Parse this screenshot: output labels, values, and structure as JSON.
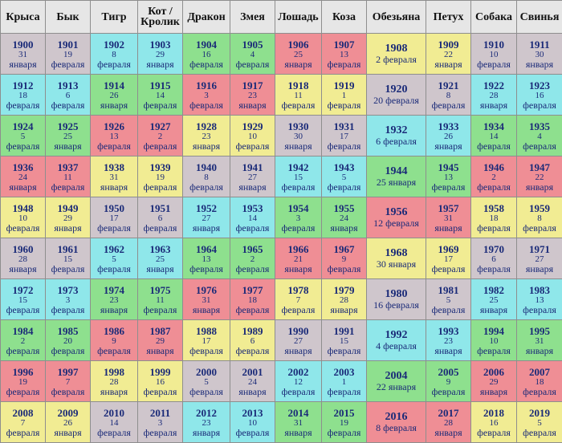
{
  "colors": {
    "header": "#e6e6e6",
    "gray": "#cfc6cc",
    "cyan": "#8fe7ea",
    "green": "#8ee08e",
    "red": "#ef8e95",
    "yellow": "#f1ec93",
    "text": "#1a2a78"
  },
  "headers": [
    "Крыса",
    "Бык",
    "Тигр",
    "Кот / Кролик",
    "Дракон",
    "Змея",
    "Лошадь",
    "Коза",
    "Обезьяна",
    "Петух",
    "Собака",
    "Свинья"
  ],
  "rows": [
    [
      {
        "year": "1900",
        "day": "31",
        "month": "января",
        "color": "gray"
      },
      {
        "year": "1901",
        "day": "19",
        "month": "февраля",
        "color": "gray"
      },
      {
        "year": "1902",
        "day": "8",
        "month": "февраля",
        "color": "cyan"
      },
      {
        "year": "1903",
        "day": "29",
        "month": "января",
        "color": "cyan"
      },
      {
        "year": "1904",
        "day": "16",
        "month": "февраля",
        "color": "green"
      },
      {
        "year": "1905",
        "day": "4",
        "month": "февраля",
        "color": "green"
      },
      {
        "year": "1906",
        "day": "25",
        "month": "января",
        "color": "red"
      },
      {
        "year": "1907",
        "day": "13",
        "month": "февраля",
        "color": "red"
      },
      {
        "year": "1908",
        "date": "2 февраля",
        "color": "yellow"
      },
      {
        "year": "1909",
        "day": "22",
        "month": "января",
        "color": "yellow"
      },
      {
        "year": "1910",
        "day": "10",
        "month": "февраля",
        "color": "gray"
      },
      {
        "year": "1911",
        "day": "30",
        "month": "января",
        "color": "gray"
      }
    ],
    [
      {
        "year": "1912",
        "day": "18",
        "month": "февраля",
        "color": "cyan"
      },
      {
        "year": "1913",
        "day": "6",
        "month": "февраля",
        "color": "cyan"
      },
      {
        "year": "1914",
        "day": "26",
        "month": "января",
        "color": "green"
      },
      {
        "year": "1915",
        "day": "14",
        "month": "февраля",
        "color": "green"
      },
      {
        "year": "1916",
        "day": "3",
        "month": "февраля",
        "color": "red"
      },
      {
        "year": "1917",
        "day": "23",
        "month": "января",
        "color": "red"
      },
      {
        "year": "1918",
        "day": "11",
        "month": "февраля",
        "color": "yellow"
      },
      {
        "year": "1919",
        "day": "1",
        "month": "февраля",
        "color": "yellow"
      },
      {
        "year": "1920",
        "date": "20 февраля",
        "color": "gray"
      },
      {
        "year": "1921",
        "day": "8",
        "month": "февраля",
        "color": "gray"
      },
      {
        "year": "1922",
        "day": "28",
        "month": "января",
        "color": "cyan"
      },
      {
        "year": "1923",
        "day": "16",
        "month": "февраля",
        "color": "cyan"
      }
    ],
    [
      {
        "year": "1924",
        "day": "5",
        "month": "февраля",
        "color": "green"
      },
      {
        "year": "1925",
        "day": "25",
        "month": "января",
        "color": "green"
      },
      {
        "year": "1926",
        "day": "13",
        "month": "февраля",
        "color": "red"
      },
      {
        "year": "1927",
        "day": "2",
        "month": "февраля",
        "color": "red"
      },
      {
        "year": "1928",
        "day": "23",
        "month": "января",
        "color": "yellow"
      },
      {
        "year": "1929",
        "day": "10",
        "month": "февраля",
        "color": "yellow"
      },
      {
        "year": "1930",
        "day": "30",
        "month": "января",
        "color": "gray"
      },
      {
        "year": "1931",
        "day": "17",
        "month": "февраля",
        "color": "gray"
      },
      {
        "year": "1932",
        "date": "6 февраля",
        "color": "cyan"
      },
      {
        "year": "1933",
        "day": "26",
        "month": "января",
        "color": "cyan"
      },
      {
        "year": "1934",
        "day": "14",
        "month": "февраля",
        "color": "green"
      },
      {
        "year": "1935",
        "day": "4",
        "month": "февраля",
        "color": "green"
      }
    ],
    [
      {
        "year": "1936",
        "day": "24",
        "month": "января",
        "color": "red"
      },
      {
        "year": "1937",
        "day": "11",
        "month": "февраля",
        "color": "red"
      },
      {
        "year": "1938",
        "day": "31",
        "month": "января",
        "color": "yellow"
      },
      {
        "year": "1939",
        "day": "19",
        "month": "февраля",
        "color": "yellow"
      },
      {
        "year": "1940",
        "day": "8",
        "month": "февраля",
        "color": "gray"
      },
      {
        "year": "1941",
        "day": "27",
        "month": "января",
        "color": "gray"
      },
      {
        "year": "1942",
        "day": "15",
        "month": "февраля",
        "color": "cyan"
      },
      {
        "year": "1943",
        "day": "5",
        "month": "февраля",
        "color": "cyan"
      },
      {
        "year": "1944",
        "date": "25 января",
        "color": "green"
      },
      {
        "year": "1945",
        "day": "13",
        "month": "февраля",
        "color": "green"
      },
      {
        "year": "1946",
        "day": "2",
        "month": "февраля",
        "color": "red"
      },
      {
        "year": "1947",
        "day": "22",
        "month": "января",
        "color": "red"
      }
    ],
    [
      {
        "year": "1948",
        "day": "10",
        "month": "февраля",
        "color": "yellow"
      },
      {
        "year": "1949",
        "day": "29",
        "month": "января",
        "color": "yellow"
      },
      {
        "year": "1950",
        "day": "17",
        "month": "февраля",
        "color": "gray"
      },
      {
        "year": "1951",
        "day": "6",
        "month": "февраля",
        "color": "gray"
      },
      {
        "year": "1952",
        "day": "27",
        "month": "января",
        "color": "cyan"
      },
      {
        "year": "1953",
        "day": "14",
        "month": "февраля",
        "color": "cyan"
      },
      {
        "year": "1954",
        "day": "3",
        "month": "февраля",
        "color": "green"
      },
      {
        "year": "1955",
        "day": "24",
        "month": "января",
        "color": "green"
      },
      {
        "year": "1956",
        "date": "12 февраля",
        "color": "red"
      },
      {
        "year": "1957",
        "day": "31",
        "month": "января",
        "color": "red"
      },
      {
        "year": "1958",
        "day": "18",
        "month": "февраля",
        "color": "yellow"
      },
      {
        "year": "1959",
        "day": "8",
        "month": "февраля",
        "color": "yellow"
      }
    ],
    [
      {
        "year": "1960",
        "day": "28",
        "month": "января",
        "color": "gray"
      },
      {
        "year": "1961",
        "day": "15",
        "month": "февраля",
        "color": "gray"
      },
      {
        "year": "1962",
        "day": "5",
        "month": "февраля",
        "color": "cyan"
      },
      {
        "year": "1963",
        "day": "25",
        "month": "января",
        "color": "cyan"
      },
      {
        "year": "1964",
        "day": "13",
        "month": "февраля",
        "color": "green"
      },
      {
        "year": "1965",
        "day": "2",
        "month": "февраля",
        "color": "green"
      },
      {
        "year": "1966",
        "day": "21",
        "month": "января",
        "color": "red"
      },
      {
        "year": "1967",
        "day": "9",
        "month": "февраля",
        "color": "red"
      },
      {
        "year": "1968",
        "date": "30 января",
        "color": "yellow"
      },
      {
        "year": "1969",
        "day": "17",
        "month": "февраля",
        "color": "yellow"
      },
      {
        "year": "1970",
        "day": "6",
        "month": "февраля",
        "color": "gray"
      },
      {
        "year": "1971",
        "day": "27",
        "month": "января",
        "color": "gray"
      }
    ],
    [
      {
        "year": "1972",
        "day": "15",
        "month": "февраля",
        "color": "cyan"
      },
      {
        "year": "1973",
        "day": "3",
        "month": "февраля",
        "color": "cyan"
      },
      {
        "year": "1974",
        "day": "23",
        "month": "января",
        "color": "green"
      },
      {
        "year": "1975",
        "day": "11",
        "month": "февраля",
        "color": "green"
      },
      {
        "year": "1976",
        "day": "31",
        "month": "января",
        "color": "red"
      },
      {
        "year": "1977",
        "day": "18",
        "month": "февраля",
        "color": "red"
      },
      {
        "year": "1978",
        "day": "7",
        "month": "февраля",
        "color": "yellow"
      },
      {
        "year": "1979",
        "day": "28",
        "month": "января",
        "color": "yellow"
      },
      {
        "year": "1980",
        "date": "16 февраля",
        "color": "gray"
      },
      {
        "year": "1981",
        "day": "5",
        "month": "февраля",
        "color": "gray"
      },
      {
        "year": "1982",
        "day": "25",
        "month": "января",
        "color": "cyan"
      },
      {
        "year": "1983",
        "day": "13",
        "month": "февраля",
        "color": "cyan"
      }
    ],
    [
      {
        "year": "1984",
        "day": "2",
        "month": "февраля",
        "color": "green"
      },
      {
        "year": "1985",
        "day": "20",
        "month": "февраля",
        "color": "green"
      },
      {
        "year": "1986",
        "day": "9",
        "month": "февраля",
        "color": "red"
      },
      {
        "year": "1987",
        "day": "29",
        "month": "января",
        "color": "red"
      },
      {
        "year": "1988",
        "day": "17",
        "month": "февраля",
        "color": "yellow"
      },
      {
        "year": "1989",
        "day": "6",
        "month": "февраля",
        "color": "yellow"
      },
      {
        "year": "1990",
        "day": "27",
        "month": "января",
        "color": "gray"
      },
      {
        "year": "1991",
        "day": "15",
        "month": "февраля",
        "color": "gray"
      },
      {
        "year": "1992",
        "date": "4 февраля",
        "color": "cyan"
      },
      {
        "year": "1993",
        "day": "23",
        "month": "января",
        "color": "cyan"
      },
      {
        "year": "1994",
        "day": "10",
        "month": "февраля",
        "color": "green"
      },
      {
        "year": "1995",
        "day": "31",
        "month": "января",
        "color": "green"
      }
    ],
    [
      {
        "year": "1996",
        "day": "19",
        "month": "февраля",
        "color": "red"
      },
      {
        "year": "1997",
        "day": "7",
        "month": "февраля",
        "color": "red"
      },
      {
        "year": "1998",
        "day": "28",
        "month": "января",
        "color": "yellow"
      },
      {
        "year": "1999",
        "day": "16",
        "month": "февраля",
        "color": "yellow"
      },
      {
        "year": "2000",
        "day": "5",
        "month": "февраля",
        "color": "gray"
      },
      {
        "year": "2001",
        "day": "24",
        "month": "января",
        "color": "gray"
      },
      {
        "year": "2002",
        "day": "12",
        "month": "февраля",
        "color": "cyan"
      },
      {
        "year": "2003",
        "day": "1",
        "month": "февраля",
        "color": "cyan"
      },
      {
        "year": "2004",
        "date": "22 января",
        "color": "green"
      },
      {
        "year": "2005",
        "day": "9",
        "month": "февраля",
        "color": "green"
      },
      {
        "year": "2006",
        "day": "29",
        "month": "января",
        "color": "red"
      },
      {
        "year": "2007",
        "day": "18",
        "month": "февраля",
        "color": "red"
      }
    ],
    [
      {
        "year": "2008",
        "day": "7",
        "month": "февраля",
        "color": "yellow"
      },
      {
        "year": "2009",
        "day": "26",
        "month": "января",
        "color": "yellow"
      },
      {
        "year": "2010",
        "day": "14",
        "month": "февраля",
        "color": "gray"
      },
      {
        "year": "2011",
        "day": "3",
        "month": "февраля",
        "color": "gray"
      },
      {
        "year": "2012",
        "day": "23",
        "month": "января",
        "color": "cyan"
      },
      {
        "year": "2013",
        "day": "10",
        "month": "февраля",
        "color": "cyan"
      },
      {
        "year": "2014",
        "day": "31",
        "month": "января",
        "color": "green"
      },
      {
        "year": "2015",
        "day": "19",
        "month": "февраля",
        "color": "green"
      },
      {
        "year": "2016",
        "date": "8 февраля",
        "color": "red"
      },
      {
        "year": "2017",
        "day": "28",
        "month": "января",
        "color": "red"
      },
      {
        "year": "2018",
        "day": "16",
        "month": "февраля",
        "color": "yellow"
      },
      {
        "year": "2019",
        "day": "5",
        "month": "февраля",
        "color": "yellow"
      }
    ]
  ]
}
